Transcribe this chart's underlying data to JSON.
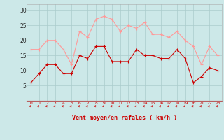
{
  "x": [
    0,
    1,
    2,
    3,
    4,
    5,
    6,
    7,
    8,
    9,
    10,
    11,
    12,
    13,
    14,
    15,
    16,
    17,
    18,
    19,
    20,
    21,
    22,
    23
  ],
  "avg_wind": [
    6,
    9,
    12,
    12,
    9,
    9,
    15,
    14,
    18,
    18,
    13,
    13,
    13,
    17,
    15,
    15,
    14,
    14,
    17,
    14,
    6,
    8,
    11,
    10
  ],
  "gust_wind": [
    17,
    17,
    20,
    20,
    17,
    12,
    23,
    21,
    27,
    28,
    27,
    23,
    25,
    24,
    26,
    22,
    22,
    21,
    23,
    20,
    18,
    12,
    18,
    15
  ],
  "avg_color": "#cc0000",
  "gust_color": "#ff9999",
  "bg_color": "#cce8e8",
  "grid_color": "#aacccc",
  "xlabel": "Vent moyen/en rafales ( km/h )",
  "xlabel_color": "#cc0000",
  "arrow_color": "#cc0000",
  "ylim": [
    0,
    32
  ],
  "yticks": [
    5,
    10,
    15,
    20,
    25,
    30
  ],
  "xlim": [
    -0.5,
    23.5
  ]
}
